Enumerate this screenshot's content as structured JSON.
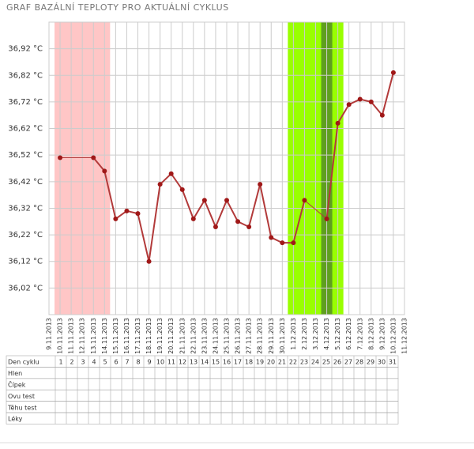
{
  "chart_data": {
    "type": "line",
    "title": "GRAF BAZÁLNÍ TEPLOTY PRO AKTUÁLNÍ CYKLUS",
    "categories": [
      "9.11.2013",
      "10.11.2013",
      "11.11.2013",
      "12.11.2013",
      "13.11.2013",
      "14.11.2013",
      "15.11.2013",
      "16.11.2013",
      "17.11.2013",
      "18.11.2013",
      "19.11.2013",
      "20.11.2013",
      "21.11.2013",
      "22.11.2013",
      "23.11.2013",
      "24.11.2013",
      "25.11.2013",
      "26.11.2013",
      "27.11.2013",
      "28.11.2013",
      "29.11.2013",
      "30.11.2013",
      "1.12.2013",
      "2.12.2013",
      "3.12.2013",
      "4.12.2013",
      "5.12.2013",
      "6.12.2013",
      "7.12.2013",
      "8.12.2013",
      "9.12.2013",
      "10.12.2013",
      "11.12.2013"
    ],
    "values": [
      null,
      36.51,
      null,
      null,
      36.51,
      36.46,
      36.28,
      36.31,
      36.3,
      36.12,
      36.41,
      36.45,
      36.39,
      36.28,
      36.35,
      36.25,
      36.35,
      36.27,
      36.25,
      36.41,
      36.21,
      36.19,
      36.19,
      36.35,
      null,
      36.28,
      36.64,
      36.71,
      36.73,
      36.72,
      36.67,
      36.83,
      null
    ],
    "color": "#b23a3a",
    "ylim": [
      35.92,
      37.02
    ],
    "yticks": [
      {
        "value": 36.02,
        "label": "36,02 °C"
      },
      {
        "value": 36.12,
        "label": "36,12 °C"
      },
      {
        "value": 36.22,
        "label": "36,22 °C"
      },
      {
        "value": 36.32,
        "label": "36,32 °C"
      },
      {
        "value": 36.42,
        "label": "36,42 °C"
      },
      {
        "value": 36.52,
        "label": "36,52 °C"
      },
      {
        "value": 36.62,
        "label": "36,62 °C"
      },
      {
        "value": 36.72,
        "label": "36,72 °C"
      },
      {
        "value": 36.82,
        "label": "36,82 °C"
      },
      {
        "value": 36.92,
        "label": "36,92 °C"
      }
    ],
    "grid": true,
    "bands": [
      {
        "from": 1,
        "to": 5,
        "color": "#ffc6c6"
      },
      {
        "from": 22,
        "to": 26,
        "color": "#99ff00"
      },
      {
        "from": 25,
        "to": 25,
        "color": "#5f9f1f"
      }
    ]
  },
  "table": {
    "rows": [
      "Den cyklu",
      "Hlen",
      "Čípek",
      "Ovu test",
      "Těhu test",
      "Léky"
    ],
    "days": [
      1,
      2,
      3,
      4,
      5,
      6,
      7,
      8,
      9,
      10,
      11,
      12,
      13,
      14,
      15,
      16,
      17,
      18,
      19,
      20,
      21,
      22,
      23,
      24,
      25,
      26,
      27,
      28,
      29,
      30,
      31
    ]
  }
}
